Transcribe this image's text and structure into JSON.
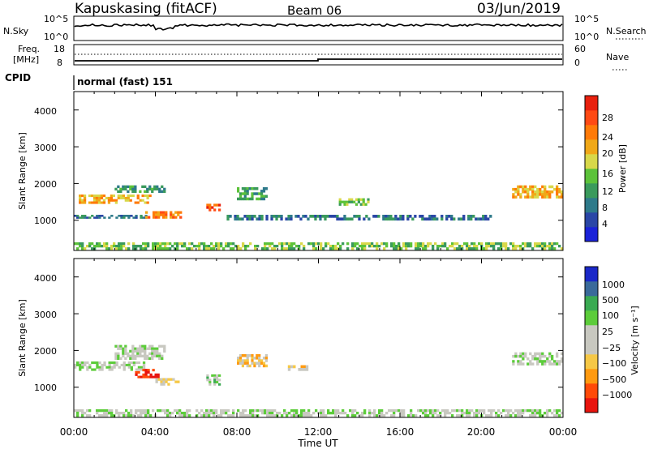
{
  "header": {
    "station": "Kapuskasing (fitACF)",
    "beam": "Beam 06",
    "date": "03/Jun/2019"
  },
  "noise_panel": {
    "left_label": "N.Sky",
    "left_ticks": [
      "10^5",
      "10^0"
    ],
    "right_label": "N.Search",
    "right_ticks": [
      "10^5",
      "10^0"
    ]
  },
  "freq_panel": {
    "left_label_1": "Freq.",
    "left_label_2": "[MHz]",
    "left_ticks": [
      "18",
      "8"
    ],
    "right_label": "Nave",
    "right_ticks": [
      "60",
      "0"
    ]
  },
  "cpid": {
    "label": "CPID",
    "mode": "normal (fast) 151"
  },
  "x_axis": {
    "ticks": [
      "00:00",
      "04:00",
      "08:00",
      "12:00",
      "16:00",
      "20:00",
      "00:00"
    ],
    "label": "Time UT"
  },
  "colors": {
    "power_scale": [
      "#1a22d8",
      "#2a46a6",
      "#2e7a8a",
      "#3a9a5c",
      "#5cc23a",
      "#d8d84a",
      "#f0a818",
      "#ff7a08",
      "#ff4a14",
      "#e8200e"
    ],
    "velocity_scale": [
      "#e8140e",
      "#ff4a08",
      "#ff9a10",
      "#f6c846",
      "#c8c8c0",
      "#c8c8c0",
      "#5ccc3a",
      "#3aaa52",
      "#3a6a9a",
      "#1a28c8"
    ]
  },
  "chart_data": [
    {
      "type": "heatmap",
      "ylabel": "Slant Range [km]",
      "y_ticks": [
        "1000",
        "2000",
        "3000",
        "4000"
      ],
      "ylim": [
        180,
        4500
      ],
      "xlim": [
        0,
        24
      ],
      "colorbar_label": "Power [dB]",
      "colorbar_ticks": [
        "4",
        "8",
        "12",
        "16",
        "20",
        "24",
        "28"
      ],
      "colorbar_range": [
        0,
        30
      ],
      "blobs": [
        {
          "t0": 0.0,
          "t1": 24.0,
          "r0": 200,
          "r1": 400,
          "v": 14
        },
        {
          "t0": 0.0,
          "t1": 3.8,
          "r0": 1450,
          "r1": 1700,
          "v": 18
        },
        {
          "t0": 0.0,
          "t1": 3.6,
          "r0": 1050,
          "r1": 1150,
          "v": 8
        },
        {
          "t0": 2.0,
          "t1": 4.5,
          "r0": 1750,
          "r1": 1950,
          "v": 10
        },
        {
          "t0": 3.5,
          "t1": 5.3,
          "r0": 1050,
          "r1": 1250,
          "v": 22
        },
        {
          "t0": 6.5,
          "t1": 7.2,
          "r0": 1250,
          "r1": 1450,
          "v": 24
        },
        {
          "t0": 7.5,
          "t1": 20.5,
          "r0": 1000,
          "r1": 1150,
          "v": 8
        },
        {
          "t0": 8.0,
          "t1": 9.5,
          "r0": 1550,
          "r1": 1900,
          "v": 10
        },
        {
          "t0": 13.0,
          "t1": 14.5,
          "r0": 1400,
          "r1": 1600,
          "v": 12
        },
        {
          "t0": 21.5,
          "t1": 24.0,
          "r0": 1600,
          "r1": 1950,
          "v": 20
        }
      ]
    },
    {
      "type": "heatmap",
      "ylabel": "Slant Range [km]",
      "y_ticks": [
        "1000",
        "2000",
        "3000",
        "4000"
      ],
      "ylim": [
        180,
        4500
      ],
      "xlim": [
        0,
        24
      ],
      "colorbar_label": "Velocity [m s⁻¹]",
      "colorbar_ticks": [
        "1000",
        "500",
        "100",
        "25",
        "−25",
        "−100",
        "−500",
        "−1000"
      ],
      "colorbar_range": [
        -1000,
        1000
      ],
      "blobs": [
        {
          "t0": 0.0,
          "t1": 24.0,
          "r0": 200,
          "r1": 400,
          "v": 120
        },
        {
          "t0": 0.0,
          "t1": 3.5,
          "r0": 1450,
          "r1": 1700,
          "v": 0
        },
        {
          "t0": 2.0,
          "t1": 4.5,
          "r0": 1750,
          "r1": 2150,
          "v": 0
        },
        {
          "t0": 3.0,
          "t1": 4.2,
          "r0": 1250,
          "r1": 1500,
          "v": -900
        },
        {
          "t0": 4.0,
          "t1": 5.3,
          "r0": 1050,
          "r1": 1250,
          "v": -200
        },
        {
          "t0": 6.5,
          "t1": 7.2,
          "r0": 1050,
          "r1": 1350,
          "v": 200
        },
        {
          "t0": 8.0,
          "t1": 9.5,
          "r0": 1550,
          "r1": 1900,
          "v": -300
        },
        {
          "t0": 10.5,
          "t1": 11.5,
          "r0": 1450,
          "r1": 1600,
          "v": -400
        },
        {
          "t0": 21.5,
          "t1": 24.0,
          "r0": 1600,
          "r1": 1950,
          "v": 0
        }
      ]
    }
  ]
}
